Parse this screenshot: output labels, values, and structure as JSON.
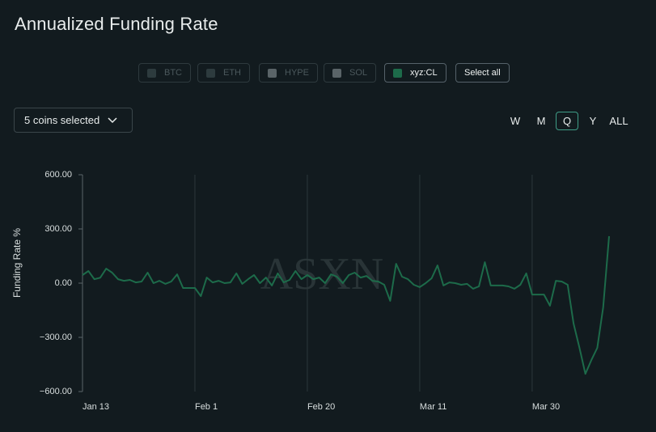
{
  "ui": {
    "coins": [
      "BTC",
      "ETH",
      "HYPE",
      "SOL"
    ],
    "select_all": "Select all",
    "dropdown": "5 coins selected",
    "ranges": [
      "W",
      "M",
      "Q",
      "Y",
      "ALL"
    ],
    "active_range": 2
  },
  "chart_data": {
    "type": "line",
    "title": "Annualized Funding Rate",
    "y_label": "Funding Rate %",
    "watermark": "ASXN",
    "categories": [
      "Jan 13",
      null,
      null,
      null,
      null,
      null,
      null,
      null,
      null,
      null,
      null,
      null,
      null,
      null,
      null,
      null,
      null,
      null,
      null,
      "Feb 1",
      null,
      null,
      null,
      null,
      null,
      null,
      null,
      null,
      null,
      null,
      null,
      null,
      null,
      null,
      null,
      null,
      null,
      null,
      "Feb 20",
      null,
      null,
      null,
      null,
      null,
      null,
      null,
      null,
      null,
      null,
      null,
      null,
      null,
      null,
      null,
      null,
      null,
      null,
      "Mar 11",
      null,
      null,
      null,
      null,
      null,
      null,
      null,
      null,
      null,
      null,
      null,
      null,
      null,
      null,
      null,
      null,
      null,
      null,
      "Mar 30",
      null,
      null,
      null,
      null,
      null,
      null,
      null,
      null,
      null,
      null,
      null,
      null,
      null
    ],
    "series": [
      {
        "name": "xyz:CL",
        "color": "#1d6b4a",
        "values": [
          45,
          67,
          22,
          30,
          80,
          58,
          22,
          13,
          18,
          4,
          9,
          58,
          0,
          13,
          -4,
          9,
          49,
          -27,
          -27,
          -27,
          -72,
          31,
          4,
          13,
          0,
          4,
          54,
          -4,
          22,
          45,
          0,
          31,
          -13,
          54,
          4,
          18,
          67,
          22,
          45,
          22,
          31,
          0,
          49,
          36,
          0,
          45,
          58,
          31,
          40,
          13,
          9,
          -9,
          -98,
          107,
          36,
          22,
          -9,
          -22,
          0,
          27,
          98,
          -13,
          4,
          0,
          -9,
          -4,
          -31,
          -18,
          116,
          -13,
          -13,
          -13,
          -18,
          -31,
          -9,
          54,
          -63,
          -63,
          -63,
          -125,
          13,
          9,
          -9,
          -224,
          -358,
          -502,
          -426,
          -358,
          -134,
          260
        ]
      }
    ],
    "ylim": [
      -600,
      600
    ],
    "yticks": [
      {
        "value": 600,
        "label": "600.00"
      },
      {
        "value": 300,
        "label": "300.00"
      },
      {
        "value": 0,
        "label": "0.00"
      },
      {
        "value": -300,
        "label": "−300.00"
      },
      {
        "value": -600,
        "label": "−600.00"
      }
    ],
    "grid": true
  }
}
